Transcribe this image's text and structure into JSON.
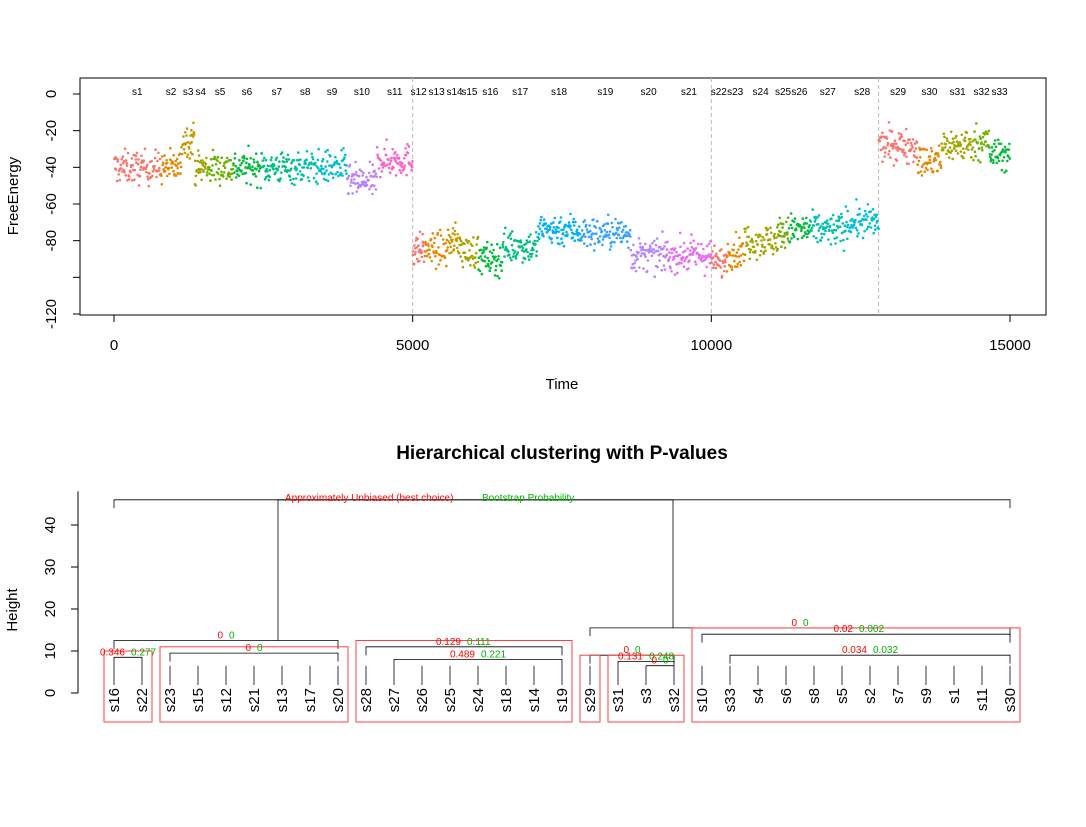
{
  "chart_data": [
    {
      "type": "scatter",
      "xlabel": "Time",
      "ylabel": "FreeEnergy",
      "xlim": [
        0,
        15000
      ],
      "ylim": [
        -120,
        0
      ],
      "x_ticks": [
        "0",
        "5000",
        "10000",
        "15000"
      ],
      "y_ticks": [
        "0",
        "-20",
        "-40",
        "-60",
        "-80",
        "",
        "-120"
      ],
      "vlines": [
        5000,
        10000,
        12800
      ],
      "segments": [
        {
          "name": "s1",
          "start": 0,
          "end": 780,
          "mean": -40,
          "color": "#F8766D"
        },
        {
          "name": "s2",
          "start": 780,
          "end": 1130,
          "mean": -40,
          "color": "#E58700"
        },
        {
          "name": "s3",
          "start": 1130,
          "end": 1350,
          "mean": -25,
          "color": "#C99800"
        },
        {
          "name": "s4",
          "start": 1350,
          "end": 1550,
          "mean": -40,
          "color": "#A3A500"
        },
        {
          "name": "s5",
          "start": 1550,
          "end": 2000,
          "mean": -40,
          "color": "#6BB100"
        },
        {
          "name": "s6",
          "start": 2000,
          "end": 2450,
          "mean": -40,
          "color": "#00BA38"
        },
        {
          "name": "s7",
          "start": 2450,
          "end": 3000,
          "mean": -40,
          "color": "#00BF7D"
        },
        {
          "name": "s8",
          "start": 3000,
          "end": 3400,
          "mean": -40,
          "color": "#00C0AF"
        },
        {
          "name": "s9",
          "start": 3400,
          "end": 3900,
          "mean": -40,
          "color": "#00BCD8"
        },
        {
          "name": "s10",
          "start": 3900,
          "end": 4400,
          "mean": -48,
          "color": "#B983FF"
        },
        {
          "name": "s11",
          "start": 4400,
          "end": 5000,
          "mean": -36,
          "color": "#FF61C3"
        },
        {
          "name": "s12",
          "start": 5000,
          "end": 5200,
          "mean": -85,
          "color": "#F8766D"
        },
        {
          "name": "s13",
          "start": 5200,
          "end": 5600,
          "mean": -85,
          "color": "#E58700"
        },
        {
          "name": "s14",
          "start": 5600,
          "end": 5800,
          "mean": -80,
          "color": "#C99800"
        },
        {
          "name": "s15",
          "start": 5800,
          "end": 6100,
          "mean": -86,
          "color": "#A3A500"
        },
        {
          "name": "s16",
          "start": 6100,
          "end": 6500,
          "mean": -90,
          "color": "#00BA38"
        },
        {
          "name": "s17",
          "start": 6500,
          "end": 7100,
          "mean": -83,
          "color": "#00BF7D"
        },
        {
          "name": "s18",
          "start": 7100,
          "end": 7800,
          "mean": -74,
          "color": "#00B0F6"
        },
        {
          "name": "s19",
          "start": 7800,
          "end": 8650,
          "mean": -76,
          "color": "#35A2FF"
        },
        {
          "name": "s20",
          "start": 8650,
          "end": 9250,
          "mean": -88,
          "color": "#B983FF"
        },
        {
          "name": "s21",
          "start": 9250,
          "end": 10000,
          "mean": -88,
          "color": "#E76BF3"
        },
        {
          "name": "s22",
          "start": 10000,
          "end": 10250,
          "mean": -92,
          "color": "#F8766D"
        },
        {
          "name": "s23",
          "start": 10250,
          "end": 10550,
          "mean": -86,
          "color": "#E58700"
        },
        {
          "name": "s24",
          "start": 10550,
          "end": 11100,
          "mean": -80,
          "color": "#A3A500"
        },
        {
          "name": "s25",
          "start": 11100,
          "end": 11300,
          "mean": -76,
          "color": "#6BB100"
        },
        {
          "name": "s26",
          "start": 11300,
          "end": 11650,
          "mean": -74,
          "color": "#00BA38"
        },
        {
          "name": "s27",
          "start": 11650,
          "end": 12250,
          "mean": -74,
          "color": "#00C0AF"
        },
        {
          "name": "s28",
          "start": 12250,
          "end": 12800,
          "mean": -70,
          "color": "#00BCD8"
        },
        {
          "name": "s29",
          "start": 12800,
          "end": 13450,
          "mean": -28,
          "color": "#F8766D"
        },
        {
          "name": "s30",
          "start": 13450,
          "end": 13850,
          "mean": -37,
          "color": "#E58700"
        },
        {
          "name": "s31",
          "start": 13850,
          "end": 14400,
          "mean": -28,
          "color": "#A3A500"
        },
        {
          "name": "s32",
          "start": 14400,
          "end": 14650,
          "mean": -26,
          "color": "#6BB100"
        },
        {
          "name": "s33",
          "start": 14650,
          "end": 15000,
          "mean": -33,
          "color": "#00BA38"
        }
      ]
    },
    {
      "type": "dendrogram",
      "title": "Hierarchical clustering with P-values",
      "ylabel": "Height",
      "ylim": [
        0,
        48
      ],
      "y_ticks": [
        "0",
        "10",
        "20",
        "30",
        "40"
      ],
      "legend": {
        "au": "Approximately Unbiased (best choice)",
        "bp": "Bootstrap Probability"
      },
      "au_color": "#FF0000",
      "bp_color": "#00B000",
      "box_color": "#FF4040",
      "leaves": [
        "s16",
        "s22",
        "s23",
        "s15",
        "s12",
        "s21",
        "s13",
        "s17",
        "s20",
        "s28",
        "s27",
        "s26",
        "s25",
        "s24",
        "s18",
        "s14",
        "s19",
        "s29",
        "s31",
        "s3",
        "s32",
        "s10",
        "s33",
        "s4",
        "s6",
        "s8",
        "s5",
        "s2",
        "s7",
        "s9",
        "s1",
        "s11",
        "s30"
      ],
      "clusters": [
        {
          "leaves": [
            0,
            1
          ],
          "height": 8.5,
          "au": "0.346",
          "bp": "0.277"
        },
        {
          "leaves": [
            2,
            8
          ],
          "height": 9.5,
          "au": "0",
          "bp": "0"
        },
        {
          "leaves": [
            0,
            8
          ],
          "height": 12.5,
          "au": "0",
          "bp": "0"
        },
        {
          "leaves": [
            9,
            16
          ],
          "height": 11,
          "au": "0.129",
          "bp": "0.111"
        },
        {
          "leaves": [
            10,
            16
          ],
          "height": 8,
          "au": "0.489",
          "bp": "0.221"
        },
        {
          "leaves": [
            17,
            20
          ],
          "height": 9,
          "au": "0",
          "bp": "0"
        },
        {
          "leaves": [
            18,
            20
          ],
          "height": 7.5,
          "au": "0.131",
          "bp": "0.248"
        },
        {
          "leaves": [
            19,
            20
          ],
          "height": 6.5,
          "au": "0",
          "bp": "0"
        },
        {
          "leaves": [
            17,
            32
          ],
          "height": 15.5,
          "au": "0",
          "bp": "0"
        },
        {
          "leaves": [
            21,
            32
          ],
          "height": 14,
          "au": "0.02",
          "bp": "0.002"
        },
        {
          "leaves": [
            22,
            32
          ],
          "height": 9,
          "au": "0.034",
          "bp": "0.032"
        },
        {
          "leaves": [
            0,
            32
          ],
          "height": 46,
          "au": "",
          "bp": ""
        }
      ],
      "box_groups": [
        [
          0,
          1
        ],
        [
          2,
          8
        ],
        [
          9,
          16
        ],
        [
          17,
          17
        ],
        [
          18,
          20
        ],
        [
          21,
          32
        ]
      ]
    }
  ]
}
